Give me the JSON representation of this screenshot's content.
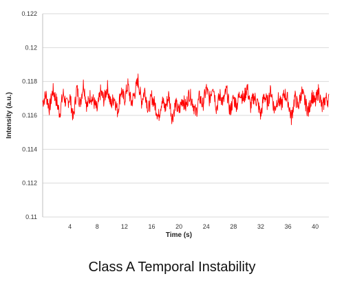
{
  "chart_data": {
    "type": "line",
    "caption": "Class A Temporal Instability",
    "xlabel": "Time (s)",
    "ylabel": "Intensity (a.u.)",
    "xlim": [
      0,
      42
    ],
    "ylim": [
      0.11,
      0.122
    ],
    "x_ticks": [
      4,
      8,
      12,
      16,
      20,
      24,
      28,
      32,
      36,
      40
    ],
    "y_ticks": [
      0.11,
      0.112,
      0.114,
      0.116,
      0.118,
      0.12,
      0.122
    ],
    "y_tick_labels": [
      "0.11",
      "0.112",
      "0.114",
      "0.116",
      "0.118",
      "0.12",
      "0.122"
    ],
    "grid": {
      "horizontal": true,
      "vertical": false
    },
    "line_color": "#ff0000",
    "grid_color": "#d9d9d9",
    "series": [
      {
        "x": [
          0,
          0.5,
          1,
          1.5,
          2,
          2.5,
          3,
          3.5,
          4,
          4.5,
          5,
          5.5,
          6,
          6.5,
          7,
          7.5,
          8,
          8.5,
          9,
          9.5,
          10,
          10.5,
          11,
          11.5,
          12,
          12.5,
          13,
          13.5,
          14,
          14.5,
          15,
          15.5,
          16,
          16.5,
          17,
          17.5,
          18,
          18.5,
          19,
          19.5,
          20,
          20.5,
          21,
          21.5,
          22,
          22.5,
          23,
          23.5,
          24,
          24.5,
          25,
          25.5,
          26,
          26.5,
          27,
          27.5,
          28,
          28.5,
          29,
          29.5,
          30,
          30.5,
          31,
          31.5,
          32,
          32.5,
          33,
          33.5,
          34,
          34.5,
          35,
          35.5,
          36,
          36.5,
          37,
          37.5,
          38,
          38.5,
          39,
          39.5,
          40,
          40.5,
          41,
          41.5,
          42
        ],
        "y": [
          0.1168,
          0.1172,
          0.1164,
          0.1175,
          0.1169,
          0.1161,
          0.1173,
          0.1166,
          0.1171,
          0.1158,
          0.1176,
          0.1167,
          0.1179,
          0.1165,
          0.1172,
          0.1168,
          0.1163,
          0.1174,
          0.1169,
          0.1177,
          0.1166,
          0.1171,
          0.1162,
          0.1175,
          0.1169,
          0.1178,
          0.1167,
          0.1173,
          0.1181,
          0.1168,
          0.1175,
          0.1163,
          0.1171,
          0.1166,
          0.1159,
          0.1169,
          0.1164,
          0.1172,
          0.1158,
          0.1167,
          0.1162,
          0.117,
          0.1165,
          0.1173,
          0.1168,
          0.1161,
          0.1171,
          0.1166,
          0.1176,
          0.1169,
          0.1179,
          0.1164,
          0.1172,
          0.1168,
          0.1175,
          0.1162,
          0.117,
          0.1166,
          0.1174,
          0.1169,
          0.1177,
          0.1165,
          0.1171,
          0.1168,
          0.116,
          0.1172,
          0.1167,
          0.1175,
          0.1163,
          0.117,
          0.1166,
          0.1173,
          0.1169,
          0.1158,
          0.1171,
          0.1165,
          0.1174,
          0.1168,
          0.1162,
          0.1172,
          0.1167,
          0.1175,
          0.1164,
          0.117,
          0.1169
        ]
      }
    ]
  }
}
